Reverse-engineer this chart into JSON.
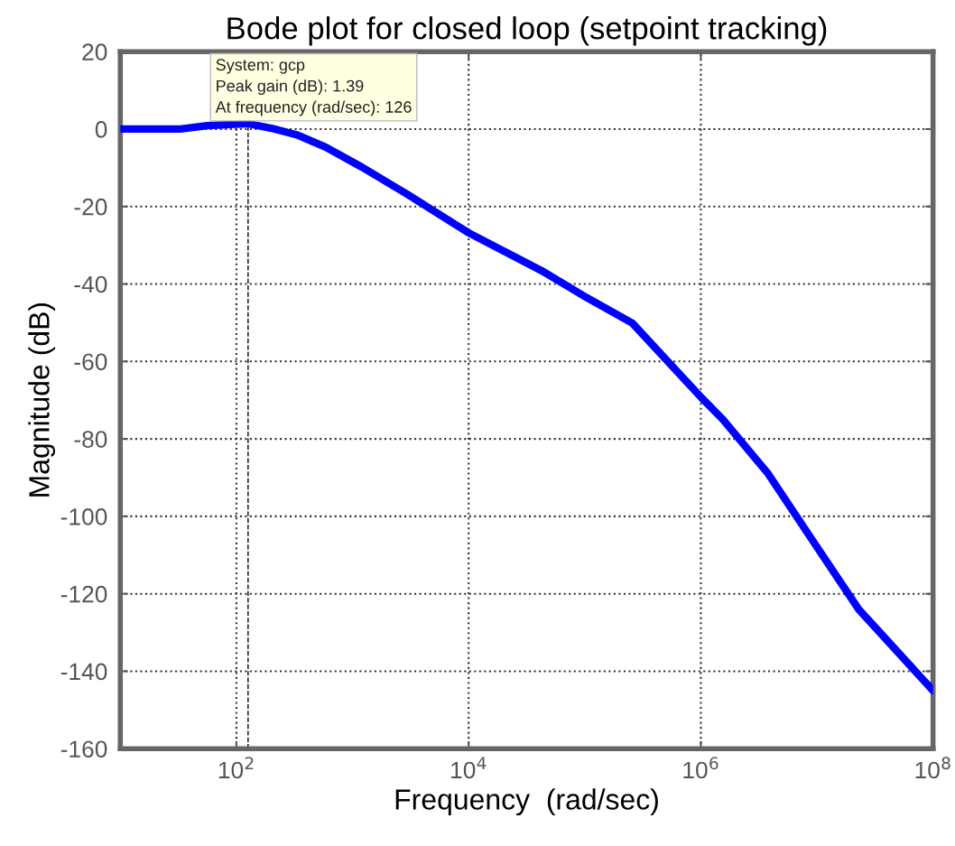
{
  "chart_data": {
    "type": "line",
    "title": "Bode plot for closed loop (setpoint tracking)",
    "xlabel": "Frequency  (rad/sec)",
    "ylabel": "Magnitude (dB)",
    "log": "x",
    "grid": true,
    "line_style": "solid",
    "marker": "none",
    "xlim": [
      10,
      100000000
    ],
    "xticks": [
      {
        "value": 100,
        "label": "10$^{2}$"
      },
      {
        "value": 10000,
        "label": "10$^{4}$"
      },
      {
        "value": 1000000,
        "label": "10$^{6}$"
      },
      {
        "value": 100000000,
        "label": "10$^{8}$"
      }
    ],
    "ylim": [
      -160,
      20
    ],
    "yticks": [
      -160,
      -140,
      -120,
      -100,
      -80,
      -60,
      -40,
      -20,
      0,
      20
    ],
    "series": [
      {
        "color": "#0000ff",
        "x": [
          10,
          33,
          56,
          126,
          200,
          340,
          590,
          1200,
          2950,
          10000,
          42700,
          105000,
          257000,
          1000000,
          1550000,
          3800000,
          9300000,
          22900000,
          100000000
        ],
        "values": [
          0,
          0,
          0.9,
          1.39,
          0.2,
          -1.6,
          -4.7,
          -9.8,
          -16.8,
          -26.8,
          -36.6,
          -43.6,
          -50.1,
          -69.2,
          -75,
          -89,
          -106.5,
          -124,
          -145
        ]
      }
    ],
    "ref_lines": [
      {
        "axis": "x",
        "value": 126,
        "line_style": "dashed",
        "color": "#000000"
      }
    ],
    "annotations": [
      "System: gcp\nPeak gain (dB): 1.39\nAt frequency (rad/sec): 126"
    ]
  }
}
